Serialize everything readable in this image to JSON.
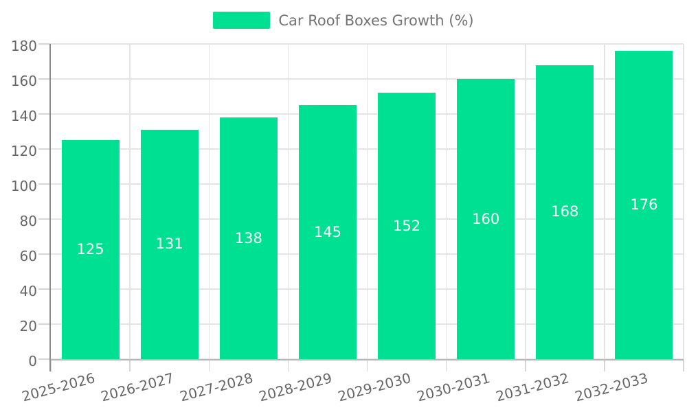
{
  "legend": {
    "label": "Car Roof Boxes Growth (%)"
  },
  "chart_data": {
    "type": "bar",
    "title": "Car Roof Boxes Growth (%)",
    "categories": [
      "2025-2026",
      "2026-2027",
      "2027-2028",
      "2028-2029",
      "2029-2030",
      "2030-2031",
      "2031-2032",
      "2032-2033"
    ],
    "values": [
      125,
      131,
      138,
      145,
      152,
      160,
      168,
      176
    ],
    "xlabel": "",
    "ylabel": "",
    "ylim": [
      0,
      180
    ],
    "yticks": [
      0,
      20,
      40,
      60,
      80,
      100,
      120,
      140,
      160,
      180
    ],
    "grid": "both",
    "legend_position": "top",
    "bar_color": "#00E093",
    "value_label_color": "#FFFFFF",
    "axis_text_color": "#666666",
    "legend_text_color": "#737373",
    "x_label_rotation_deg": -15
  }
}
